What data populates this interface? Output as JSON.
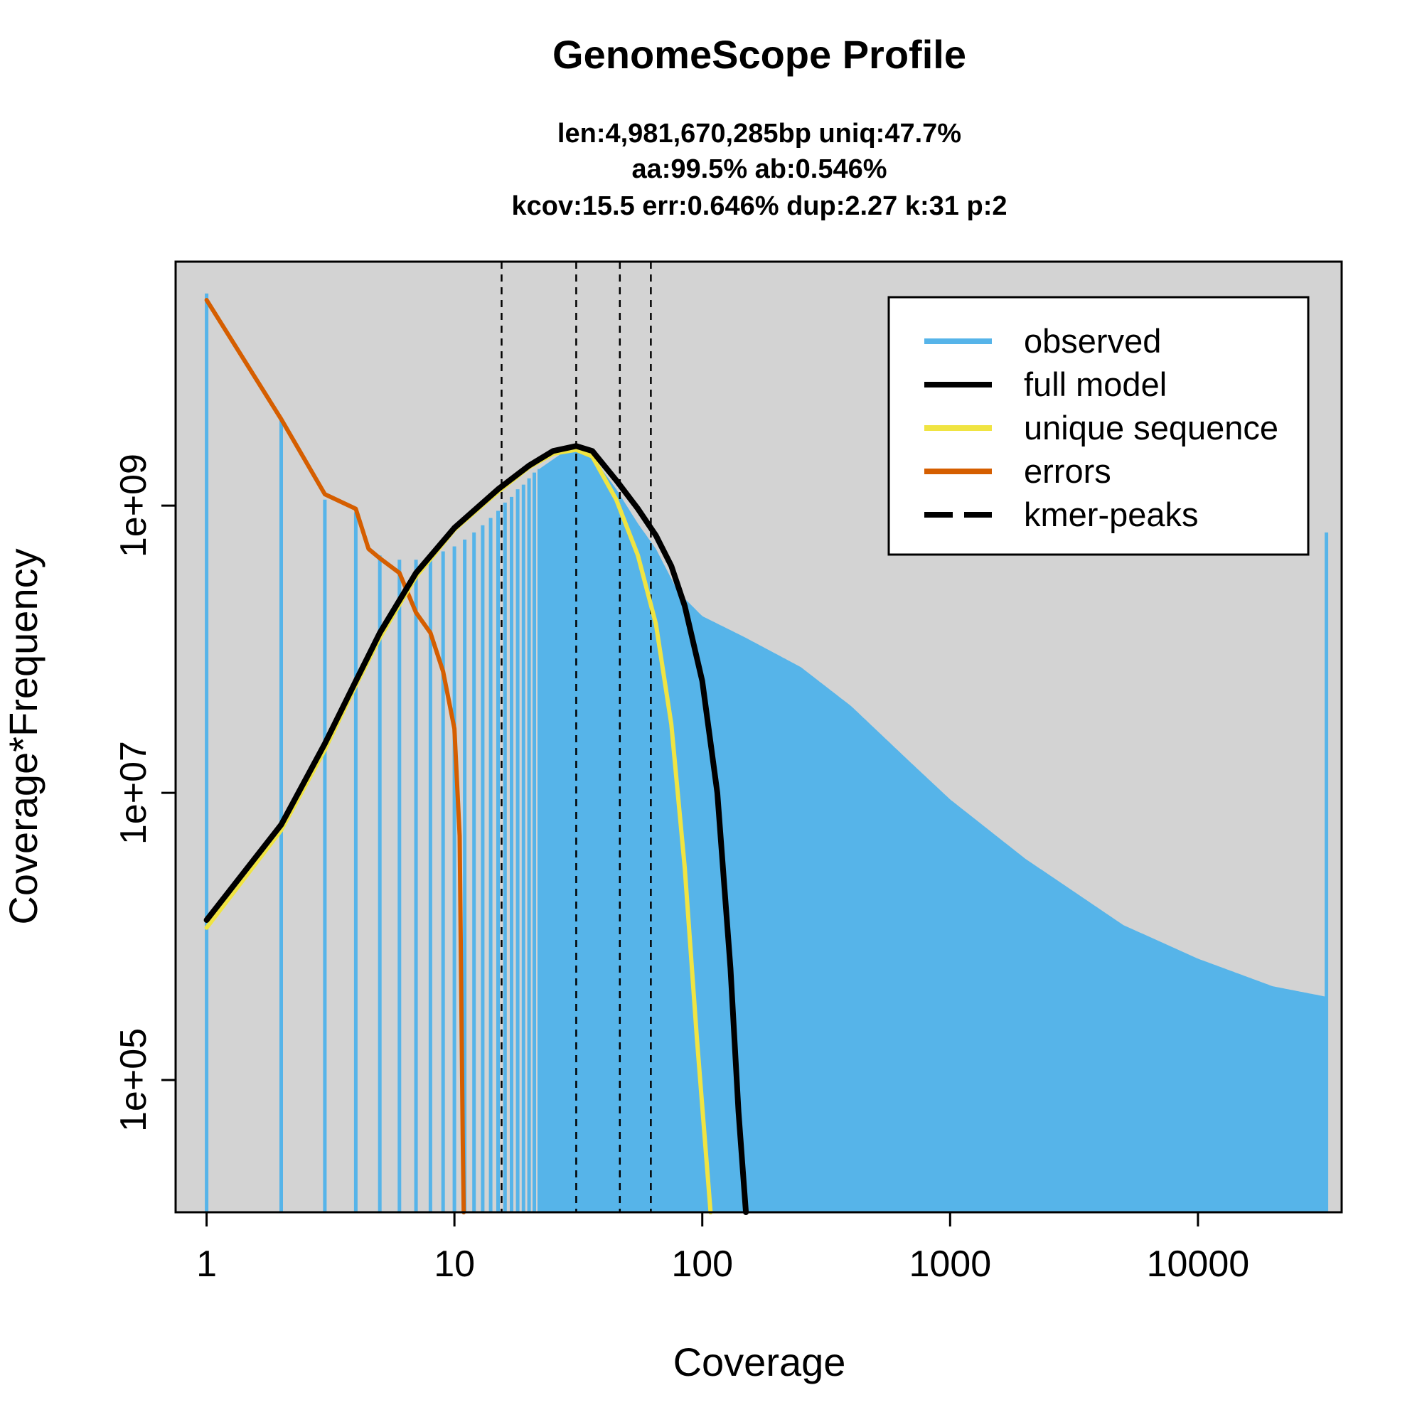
{
  "chart_data": {
    "type": "line",
    "title": "GenomeScope Profile",
    "subtitle_lines": [
      "len:4,981,670,285bp uniq:47.7%",
      "aa:99.5% ab:0.546%",
      "kcov:15.5 err:0.646%  dup:2.27  k:31 p:2"
    ],
    "xlabel": "Coverage",
    "ylabel": "Coverage*Frequency",
    "x_scale": "log",
    "y_scale": "log",
    "xlim": [
      0.75,
      38000
    ],
    "ylim": [
      12000,
      50000000000
    ],
    "x_ticks": [
      {
        "value": 1,
        "label": "1"
      },
      {
        "value": 10,
        "label": "10"
      },
      {
        "value": 100,
        "label": "100"
      },
      {
        "value": 1000,
        "label": "1000"
      },
      {
        "value": 10000,
        "label": "10000"
      }
    ],
    "y_ticks": [
      {
        "value": 100000,
        "label": "1e+05"
      },
      {
        "value": 10000000,
        "label": "1e+07"
      },
      {
        "value": 1000000000,
        "label": "1e+09"
      }
    ],
    "background": "#d3d3d3",
    "grid": false,
    "legend": {
      "position": "top-right",
      "entries": [
        {
          "label": "observed",
          "color": "#56b4e9",
          "style": "solid"
        },
        {
          "label": "full model",
          "color": "#000000",
          "style": "solid"
        },
        {
          "label": "unique sequence",
          "color": "#f0e442",
          "style": "solid"
        },
        {
          "label": "errors",
          "color": "#d55e00",
          "style": "solid"
        },
        {
          "label": "kmer-peaks",
          "color": "#000000",
          "style": "dashed"
        }
      ]
    },
    "kmer_peaks": [
      15.5,
      31,
      46.5,
      62
    ],
    "series": [
      {
        "name": "observed",
        "color": "#56b4e9",
        "render": "histogram-spikes",
        "discrete_points": [
          {
            "x": 1,
            "y": 30000000000
          },
          {
            "x": 2,
            "y": 4000000000
          },
          {
            "x": 3,
            "y": 1100000000
          },
          {
            "x": 4,
            "y": 900000000
          },
          {
            "x": 5,
            "y": 450000000
          },
          {
            "x": 6,
            "y": 420000000
          },
          {
            "x": 7,
            "y": 420000000
          },
          {
            "x": 8,
            "y": 450000000
          },
          {
            "x": 9,
            "y": 480000000
          },
          {
            "x": 10,
            "y": 520000000
          },
          {
            "x": 11,
            "y": 580000000
          },
          {
            "x": 12,
            "y": 650000000
          },
          {
            "x": 13,
            "y": 730000000
          },
          {
            "x": 14,
            "y": 820000000
          },
          {
            "x": 15,
            "y": 920000000
          },
          {
            "x": 16,
            "y": 1050000000
          },
          {
            "x": 17,
            "y": 1150000000
          },
          {
            "x": 18,
            "y": 1300000000
          },
          {
            "x": 19,
            "y": 1400000000
          },
          {
            "x": 20,
            "y": 1550000000
          },
          {
            "x": 21,
            "y": 1700000000
          },
          {
            "x": 22,
            "y": 1800000000
          }
        ],
        "envelope": [
          {
            "x": 22,
            "y": 1800000000
          },
          {
            "x": 27,
            "y": 2300000000
          },
          {
            "x": 31,
            "y": 2500000000
          },
          {
            "x": 36,
            "y": 2200000000
          },
          {
            "x": 45,
            "y": 1300000000
          },
          {
            "x": 55,
            "y": 750000000
          },
          {
            "x": 65,
            "y": 500000000
          },
          {
            "x": 80,
            "y": 250000000
          },
          {
            "x": 100,
            "y": 170000000
          },
          {
            "x": 150,
            "y": 120000000
          },
          {
            "x": 250,
            "y": 75000000
          },
          {
            "x": 400,
            "y": 40000000
          },
          {
            "x": 700,
            "y": 16000000
          },
          {
            "x": 1000,
            "y": 9000000
          },
          {
            "x": 2000,
            "y": 3500000
          },
          {
            "x": 5000,
            "y": 1200000
          },
          {
            "x": 10000,
            "y": 700000
          },
          {
            "x": 20000,
            "y": 450000
          },
          {
            "x": 33000,
            "y": 380000
          }
        ],
        "last_bin": {
          "x": 33000,
          "y": 650000000
        }
      },
      {
        "name": "full model",
        "color": "#000000",
        "points": [
          {
            "x": 1,
            "y": 1300000
          },
          {
            "x": 2,
            "y": 6000000
          },
          {
            "x": 3,
            "y": 22000000
          },
          {
            "x": 4,
            "y": 60000000
          },
          {
            "x": 5,
            "y": 130000000
          },
          {
            "x": 7,
            "y": 340000000
          },
          {
            "x": 10,
            "y": 700000000
          },
          {
            "x": 15,
            "y": 1300000000
          },
          {
            "x": 20,
            "y": 1900000000
          },
          {
            "x": 25,
            "y": 2400000000
          },
          {
            "x": 31,
            "y": 2600000000
          },
          {
            "x": 36,
            "y": 2400000000
          },
          {
            "x": 45,
            "y": 1500000000
          },
          {
            "x": 55,
            "y": 950000000
          },
          {
            "x": 65,
            "y": 620000000
          },
          {
            "x": 75,
            "y": 380000000
          },
          {
            "x": 85,
            "y": 200000000
          },
          {
            "x": 100,
            "y": 60000000
          },
          {
            "x": 115,
            "y": 10000000
          },
          {
            "x": 130,
            "y": 600000
          },
          {
            "x": 140,
            "y": 60000
          },
          {
            "x": 150,
            "y": 12000
          }
        ]
      },
      {
        "name": "unique sequence",
        "color": "#f0e442",
        "points": [
          {
            "x": 1,
            "y": 1150000
          },
          {
            "x": 2,
            "y": 5500000
          },
          {
            "x": 3,
            "y": 20000000
          },
          {
            "x": 4,
            "y": 56000000
          },
          {
            "x": 5,
            "y": 120000000
          },
          {
            "x": 7,
            "y": 320000000
          },
          {
            "x": 10,
            "y": 680000000
          },
          {
            "x": 15,
            "y": 1250000000
          },
          {
            "x": 20,
            "y": 1850000000
          },
          {
            "x": 25,
            "y": 2300000000
          },
          {
            "x": 31,
            "y": 2450000000
          },
          {
            "x": 36,
            "y": 2200000000
          },
          {
            "x": 45,
            "y": 1100000000
          },
          {
            "x": 55,
            "y": 450000000
          },
          {
            "x": 65,
            "y": 150000000
          },
          {
            "x": 75,
            "y": 30000000
          },
          {
            "x": 85,
            "y": 3000000
          },
          {
            "x": 95,
            "y": 200000
          },
          {
            "x": 108,
            "y": 12000
          }
        ]
      },
      {
        "name": "errors",
        "color": "#d55e00",
        "points": [
          {
            "x": 1,
            "y": 27000000000
          },
          {
            "x": 2,
            "y": 4000000000
          },
          {
            "x": 3,
            "y": 1200000000
          },
          {
            "x": 4,
            "y": 950000000
          },
          {
            "x": 4.5,
            "y": 500000000
          },
          {
            "x": 5,
            "y": 430000000
          },
          {
            "x": 6,
            "y": 340000000
          },
          {
            "x": 7,
            "y": 180000000
          },
          {
            "x": 8,
            "y": 130000000
          },
          {
            "x": 9,
            "y": 70000000
          },
          {
            "x": 10,
            "y": 28000000
          },
          {
            "x": 10.5,
            "y": 5000000
          },
          {
            "x": 10.8,
            "y": 40000
          },
          {
            "x": 10.9,
            "y": 12000
          }
        ]
      }
    ]
  }
}
